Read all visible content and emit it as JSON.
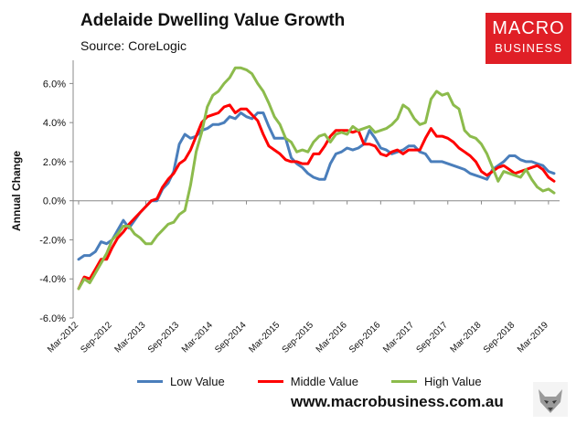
{
  "header": {
    "title": "Adelaide Dwelling Value Growth",
    "subtitle": "Source: CoreLogic"
  },
  "logo": {
    "line1": "MACRO",
    "line2": "BUSINESS"
  },
  "footer": {
    "website": "www.macrobusiness.com.au"
  },
  "colors": {
    "low": "#4a7ebb",
    "middle": "#ff0000",
    "high": "#8cbb4c",
    "logo": "#e01f26"
  },
  "chart_data": {
    "type": "line",
    "title": "Adelaide Dwelling Value Growth",
    "ylabel": "Annual Change",
    "xlabel": "",
    "ylim": [
      -6,
      7
    ],
    "yticks": [
      "-6.0%",
      "-4.0%",
      "-2.0%",
      "0.0%",
      "2.0%",
      "4.0%",
      "6.0%"
    ],
    "ytick_values": [
      -6,
      -4,
      -2,
      0,
      2,
      4,
      6
    ],
    "x": [
      "Mar-2012",
      "Apr-2012",
      "May-2012",
      "Jun-2012",
      "Jul-2012",
      "Aug-2012",
      "Sep-2012",
      "Oct-2012",
      "Nov-2012",
      "Dec-2012",
      "Jan-2013",
      "Feb-2013",
      "Mar-2013",
      "Apr-2013",
      "May-2013",
      "Jun-2013",
      "Jul-2013",
      "Aug-2013",
      "Sep-2013",
      "Oct-2013",
      "Nov-2013",
      "Dec-2013",
      "Jan-2014",
      "Feb-2014",
      "Mar-2014",
      "Apr-2014",
      "May-2014",
      "Jun-2014",
      "Jul-2014",
      "Aug-2014",
      "Sep-2014",
      "Oct-2014",
      "Nov-2014",
      "Dec-2014",
      "Jan-2015",
      "Feb-2015",
      "Mar-2015",
      "Apr-2015",
      "May-2015",
      "Jun-2015",
      "Jul-2015",
      "Aug-2015",
      "Sep-2015",
      "Oct-2015",
      "Nov-2015",
      "Dec-2015",
      "Jan-2016",
      "Feb-2016",
      "Mar-2016",
      "Apr-2016",
      "May-2016",
      "Jun-2016",
      "Jul-2016",
      "Aug-2016",
      "Sep-2016",
      "Oct-2016",
      "Nov-2016",
      "Dec-2016",
      "Jan-2017",
      "Feb-2017",
      "Mar-2017",
      "Apr-2017",
      "May-2017",
      "Jun-2017",
      "Jul-2017",
      "Aug-2017",
      "Sep-2017",
      "Oct-2017",
      "Nov-2017",
      "Dec-2017",
      "Jan-2018",
      "Feb-2018",
      "Mar-2018",
      "Apr-2018",
      "May-2018",
      "Jun-2018",
      "Jul-2018",
      "Aug-2018",
      "Sep-2018",
      "Oct-2018",
      "Nov-2018",
      "Dec-2018",
      "Jan-2019",
      "Feb-2019",
      "Mar-2019",
      "Apr-2019"
    ],
    "xtick_labels": [
      "Mar-2012",
      "Sep-2012",
      "Mar-2013",
      "Sep-2013",
      "Mar-2014",
      "Sep-2014",
      "Mar-2015",
      "Sep-2015",
      "Mar-2016",
      "Sep-2016",
      "Mar-2017",
      "Sep-2017",
      "Mar-2018",
      "Sep-2018",
      "Mar-2019"
    ],
    "legend_position": "bottom",
    "grid": false,
    "series": [
      {
        "name": "Low Value",
        "color": "#4a7ebb",
        "values": [
          -3.0,
          -2.8,
          -2.8,
          -2.6,
          -2.1,
          -2.2,
          -2.0,
          -1.5,
          -1.0,
          -1.4,
          -1.0,
          -0.6,
          -0.3,
          0.0,
          0.0,
          0.6,
          0.9,
          1.5,
          2.9,
          3.4,
          3.2,
          3.3,
          3.6,
          3.7,
          3.9,
          3.9,
          4.0,
          4.3,
          4.2,
          4.5,
          4.3,
          4.2,
          4.5,
          4.5,
          3.8,
          3.2,
          3.2,
          3.2,
          2.2,
          1.9,
          1.7,
          1.4,
          1.2,
          1.1,
          1.1,
          1.9,
          2.4,
          2.5,
          2.7,
          2.6,
          2.7,
          2.9,
          3.6,
          3.2,
          2.7,
          2.6,
          2.4,
          2.5,
          2.6,
          2.8,
          2.8,
          2.5,
          2.4,
          2.0,
          2.0,
          2.0,
          1.9,
          1.8,
          1.7,
          1.6,
          1.4,
          1.3,
          1.2,
          1.1,
          1.6,
          1.8,
          2.0,
          2.3,
          2.3,
          2.1,
          2.0,
          2.0,
          1.9,
          1.8,
          1.5,
          1.4
        ]
      },
      {
        "name": "Middle Value",
        "color": "#ff0000",
        "values": [
          -4.5,
          -3.9,
          -4.0,
          -3.5,
          -3.0,
          -3.0,
          -2.4,
          -1.9,
          -1.6,
          -1.2,
          -0.9,
          -0.6,
          -0.3,
          0.0,
          0.1,
          0.7,
          1.1,
          1.4,
          1.9,
          2.1,
          2.6,
          3.3,
          4.0,
          4.3,
          4.4,
          4.5,
          4.8,
          4.9,
          4.5,
          4.7,
          4.7,
          4.4,
          4.1,
          3.4,
          2.8,
          2.6,
          2.4,
          2.1,
          2.0,
          2.0,
          1.9,
          1.9,
          2.4,
          2.4,
          2.8,
          3.3,
          3.6,
          3.6,
          3.6,
          3.5,
          3.6,
          2.9,
          2.9,
          2.8,
          2.4,
          2.3,
          2.5,
          2.6,
          2.4,
          2.6,
          2.6,
          2.6,
          3.2,
          3.7,
          3.3,
          3.3,
          3.2,
          3.0,
          2.7,
          2.5,
          2.3,
          2.0,
          1.5,
          1.3,
          1.5,
          1.7,
          1.8,
          1.6,
          1.4,
          1.5,
          1.6,
          1.7,
          1.8,
          1.6,
          1.2,
          1.0
        ]
      },
      {
        "name": "High Value",
        "color": "#8cbb4c",
        "values": [
          -4.5,
          -4.0,
          -4.2,
          -3.7,
          -3.2,
          -2.7,
          -2.0,
          -1.7,
          -1.3,
          -1.3,
          -1.7,
          -1.9,
          -2.2,
          -2.2,
          -1.8,
          -1.5,
          -1.2,
          -1.1,
          -0.7,
          -0.5,
          0.8,
          2.5,
          3.5,
          4.8,
          5.4,
          5.6,
          6.0,
          6.3,
          6.8,
          6.8,
          6.7,
          6.5,
          6.0,
          5.6,
          5.0,
          4.3,
          3.9,
          3.2,
          3.0,
          2.5,
          2.6,
          2.5,
          3.0,
          3.3,
          3.4,
          3.0,
          3.4,
          3.5,
          3.4,
          3.8,
          3.6,
          3.7,
          3.8,
          3.5,
          3.6,
          3.7,
          3.9,
          4.2,
          4.9,
          4.7,
          4.2,
          3.9,
          4.0,
          5.2,
          5.6,
          5.4,
          5.5,
          4.9,
          4.7,
          3.6,
          3.3,
          3.2,
          2.9,
          2.4,
          1.7,
          1.0,
          1.5,
          1.4,
          1.3,
          1.2,
          1.6,
          1.1,
          0.7,
          0.5,
          0.6,
          0.4
        ]
      }
    ]
  }
}
